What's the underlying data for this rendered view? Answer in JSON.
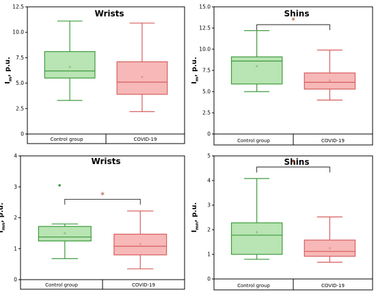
{
  "colors": {
    "control_stroke": "#3c9a3c",
    "control_fill": "#b9e4b3",
    "covid_stroke": "#d65c5c",
    "covid_fill": "#f7b8b8",
    "bracket": "#000000",
    "star": "#a0522d"
  },
  "chart_data": [
    {
      "type": "box",
      "title": "Wrists",
      "ylabel_main": "I",
      "ylabel_sub": "m",
      "ylabel_rest": ", p.u.",
      "ylim": [
        0,
        12.5
      ],
      "yticks": [
        "0",
        "2.5",
        "5.0",
        "7.5",
        "10.0",
        "12.5"
      ],
      "ytick_values": [
        0,
        2.5,
        5.0,
        7.5,
        10.0,
        12.5
      ],
      "categories": [
        "Control group",
        "COVID-19"
      ],
      "boxes": [
        {
          "group": "Control group",
          "min": 3.3,
          "q1": 5.5,
          "median": 6.2,
          "q3": 8.1,
          "max": 11.1,
          "mean": 6.6,
          "outliers": []
        },
        {
          "group": "COVID-19",
          "min": 2.2,
          "q1": 3.9,
          "median": 5.1,
          "q3": 7.1,
          "max": 10.9,
          "mean": 5.6,
          "outliers": []
        }
      ],
      "significance": ""
    },
    {
      "type": "box",
      "title": "Shins",
      "ylabel_main": "I",
      "ylabel_sub": "m",
      "ylabel_rest": ", p.u.",
      "ylim": [
        0,
        15.0
      ],
      "yticks": [
        "0",
        "2.5",
        "5.0",
        "7.5",
        "10.0",
        "12.5",
        "15.0"
      ],
      "ytick_values": [
        0,
        2.5,
        5.0,
        7.5,
        10.0,
        12.5,
        15.0
      ],
      "categories": [
        "Control group",
        "COVID-19"
      ],
      "boxes": [
        {
          "group": "Control group",
          "min": 5.0,
          "q1": 5.9,
          "median": 8.6,
          "q3": 9.1,
          "max": 12.2,
          "mean": 8.0,
          "outliers": []
        },
        {
          "group": "COVID-19",
          "min": 4.0,
          "q1": 5.3,
          "median": 6.1,
          "q3": 7.2,
          "max": 9.9,
          "mean": 6.3,
          "outliers": []
        }
      ],
      "significance": "*",
      "bracket_y": 12.9
    },
    {
      "type": "box",
      "title": "Wrists",
      "ylabel_main": "I",
      "ylabel_sub": "mn",
      "ylabel_rest": ", p.u.",
      "ylim": [
        0,
        4
      ],
      "yticks": [
        "0",
        "1",
        "2",
        "3",
        "4"
      ],
      "ytick_values": [
        0,
        1,
        2,
        3,
        4
      ],
      "categories": [
        "Control group",
        "COVID-19"
      ],
      "boxes": [
        {
          "group": "Control group",
          "min": 0.68,
          "q1": 1.25,
          "median": 1.38,
          "q3": 1.72,
          "max": 1.8,
          "mean": 1.5,
          "outliers": [
            3.05
          ]
        },
        {
          "group": "COVID-19",
          "min": 0.35,
          "q1": 0.8,
          "median": 1.08,
          "q3": 1.47,
          "max": 2.22,
          "mean": 1.15,
          "outliers": []
        }
      ],
      "significance": "*",
      "bracket_y": 2.6
    },
    {
      "type": "box",
      "title": "Shins",
      "ylabel_main": "I",
      "ylabel_sub": "mn",
      "ylabel_rest": ", p.u.",
      "ylim": [
        0,
        5
      ],
      "yticks": [
        "0",
        "1",
        "2",
        "3",
        "4",
        "5"
      ],
      "ytick_values": [
        0,
        1,
        2,
        3,
        4,
        5
      ],
      "categories": [
        "Control group",
        "COVID-19"
      ],
      "boxes": [
        {
          "group": "Control group",
          "min": 0.8,
          "q1": 1.0,
          "median": 1.78,
          "q3": 2.28,
          "max": 4.08,
          "mean": 1.9,
          "outliers": []
        },
        {
          "group": "COVID-19",
          "min": 0.68,
          "q1": 0.92,
          "median": 1.12,
          "q3": 1.58,
          "max": 2.52,
          "mean": 1.25,
          "outliers": []
        }
      ],
      "significance": "*",
      "bracket_y": 4.55
    }
  ]
}
